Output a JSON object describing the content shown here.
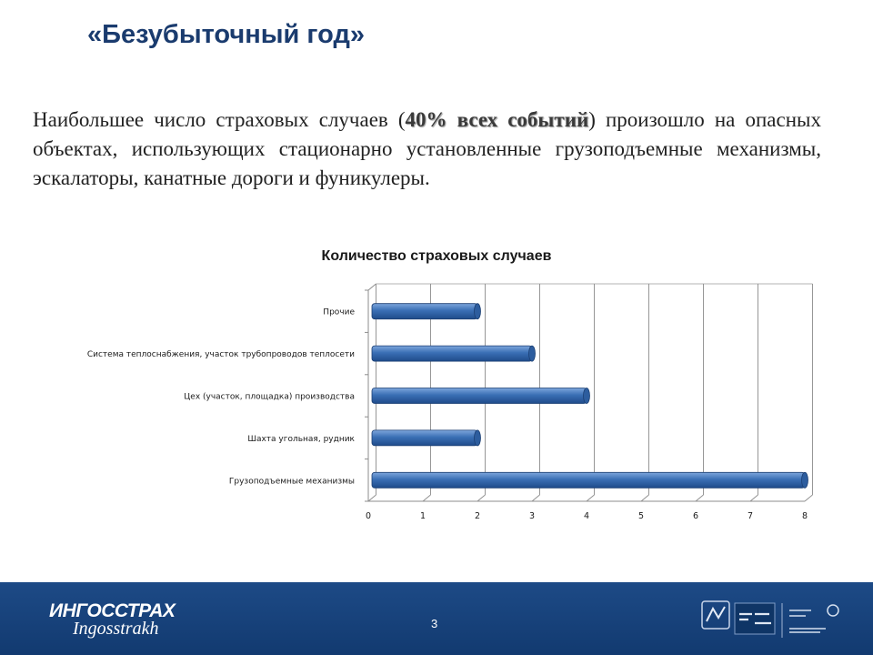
{
  "slide": {
    "title": "«Безубыточный год»",
    "text_before": "Наибольшее число страховых случаев (",
    "text_highlight": "40% всех событий",
    "text_after": ") произошло на опасных объектах, использующих стационарно установленные грузоподъемные механизмы, эскалаторы, канатные дороги и фуникулеры."
  },
  "chart_data": {
    "type": "bar",
    "orientation": "horizontal",
    "title": "Количество страховых случаев",
    "categories": [
      "Прочие",
      "Система теплоснабжения, участок трубопроводов теплосети",
      "Цех (участок, площадка) производства",
      "Шахта угольная, рудник",
      "Грузоподъемные механизмы"
    ],
    "values": [
      2,
      3,
      4,
      2,
      8
    ],
    "xlim": [
      0,
      8
    ],
    "x_ticks": [
      "0",
      "1",
      "2",
      "3",
      "4",
      "5",
      "6",
      "7",
      "8"
    ],
    "grid": true,
    "bar_color": "#3a6fb5"
  },
  "footer": {
    "page_number": "3",
    "logo_ru": "ИНГОССТРАХ",
    "logo_lat": "Ingosstrakh",
    "bg_color": "#1a4580"
  }
}
